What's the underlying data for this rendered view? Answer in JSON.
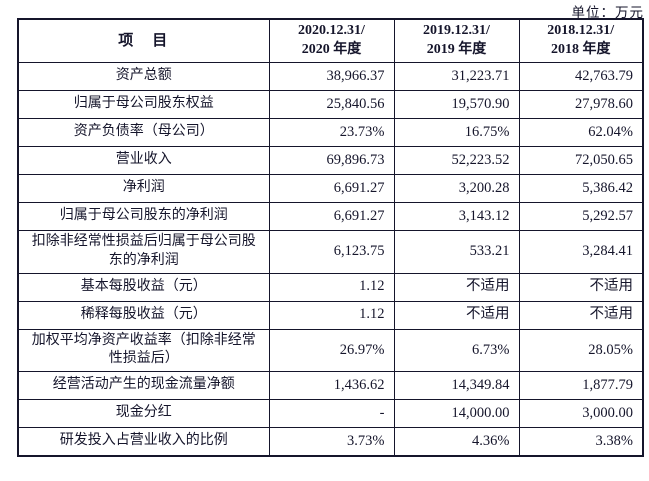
{
  "unit_label": "单位：万元",
  "colors": {
    "text": "#15152b",
    "border": "#15152b",
    "background": "#ffffff"
  },
  "table": {
    "header": {
      "item": "项　目",
      "periods": [
        "2020.12.31/\n2020 年度",
        "2019.12.31/\n2019 年度",
        "2018.12.31/\n2018 年度"
      ]
    },
    "rows": [
      {
        "label": "资产总额",
        "values": [
          "38,966.37",
          "31,223.71",
          "42,763.79"
        ]
      },
      {
        "label": "归属于母公司股东权益",
        "values": [
          "25,840.56",
          "19,570.90",
          "27,978.60"
        ]
      },
      {
        "label": "资产负债率（母公司）",
        "values": [
          "23.73%",
          "16.75%",
          "62.04%"
        ]
      },
      {
        "label": "营业收入",
        "values": [
          "69,896.73",
          "52,223.52",
          "72,050.65"
        ]
      },
      {
        "label": "净利润",
        "values": [
          "6,691.27",
          "3,200.28",
          "5,386.42"
        ]
      },
      {
        "label": "归属于母公司股东的净利润",
        "values": [
          "6,691.27",
          "3,143.12",
          "5,292.57"
        ]
      },
      {
        "label": "扣除非经常性损益后归属于母公司股东的净利润",
        "values": [
          "6,123.75",
          "533.21",
          "3,284.41"
        ]
      },
      {
        "label": "基本每股收益（元）",
        "values": [
          "1.12",
          "不适用",
          "不适用"
        ]
      },
      {
        "label": "稀释每股收益（元）",
        "values": [
          "1.12",
          "不适用",
          "不适用"
        ]
      },
      {
        "label": "加权平均净资产收益率（扣除非经常性损益后）",
        "values": [
          "26.97%",
          "6.73%",
          "28.05%"
        ]
      },
      {
        "label": "经营活动产生的现金流量净额",
        "values": [
          "1,436.62",
          "14,349.84",
          "1,877.79"
        ]
      },
      {
        "label": "现金分红",
        "values": [
          "-",
          "14,000.00",
          "3,000.00"
        ]
      },
      {
        "label": "研发投入占营业收入的比例",
        "values": [
          "3.73%",
          "4.36%",
          "3.38%"
        ]
      }
    ]
  }
}
